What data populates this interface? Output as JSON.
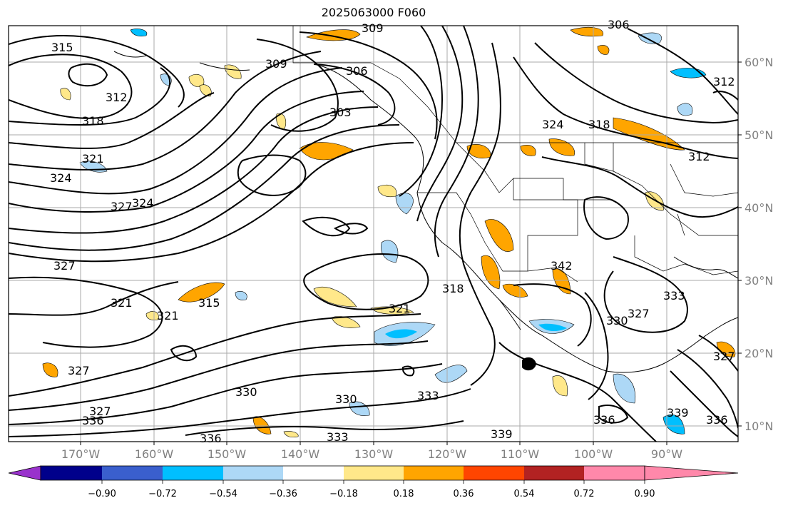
{
  "title": "2025063000 F060",
  "lon_labels": [
    "170°W",
    "160°W",
    "150°W",
    "140°W",
    "130°W",
    "120°W",
    "110°W",
    "100°W",
    "90°W"
  ],
  "lat_labels": [
    "60°N",
    "50°N",
    "40°N",
    "30°N",
    "20°N",
    "10°N"
  ],
  "colorbar": {
    "ticks": [
      "−0.90",
      "−0.72",
      "−0.54",
      "−0.36",
      "−0.18",
      "0.18",
      "0.36",
      "0.54",
      "0.72",
      "0.90"
    ],
    "colors": [
      "#9932cc",
      "#00008b",
      "#3a5fcd",
      "#00bfff",
      "#add8f6",
      "#ffffff",
      "#ffe88a",
      "#ffa500",
      "#ff4500",
      "#b22222",
      "#ff88aa"
    ]
  },
  "contour_labels": [
    "309",
    "306",
    "315",
    "318",
    "321",
    "324",
    "327",
    "312",
    "303",
    "306",
    "309",
    "312",
    "324",
    "318",
    "312",
    "327",
    "324",
    "321",
    "321",
    "315",
    "321",
    "318",
    "342",
    "327",
    "333",
    "330",
    "327",
    "327",
    "333",
    "330",
    "336",
    "336",
    "333",
    "339",
    "336",
    "339",
    "336",
    "327",
    "330"
  ]
}
